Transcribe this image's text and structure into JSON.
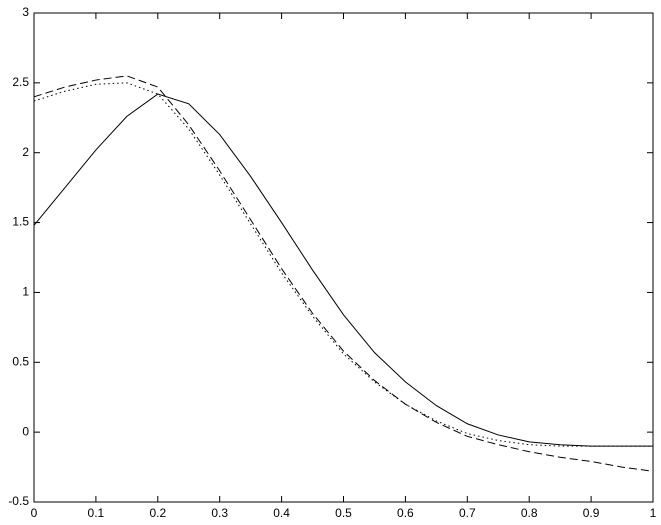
{
  "chart_data": {
    "type": "line",
    "x": [
      0,
      0.05,
      0.1,
      0.15,
      0.2,
      0.25,
      0.3,
      0.35,
      0.4,
      0.45,
      0.5,
      0.55,
      0.6,
      0.65,
      0.7,
      0.75,
      0.8,
      0.85,
      0.9,
      0.95,
      1
    ],
    "series": [
      {
        "color": "#000000",
        "dash": "solid",
        "values": [
          1.48,
          1.75,
          2.02,
          2.26,
          2.42,
          2.35,
          2.13,
          1.83,
          1.5,
          1.16,
          0.84,
          0.57,
          0.36,
          0.19,
          0.06,
          -0.02,
          -0.07,
          -0.09,
          -0.1,
          -0.1,
          -0.1
        ]
      },
      {
        "color": "#000000",
        "dash": "dashed",
        "values": [
          2.4,
          2.47,
          2.52,
          2.55,
          2.47,
          2.2,
          1.87,
          1.52,
          1.17,
          0.85,
          0.58,
          0.37,
          0.2,
          0.07,
          -0.03,
          -0.09,
          -0.14,
          -0.18,
          -0.21,
          -0.25,
          -0.28
        ]
      },
      {
        "color": "#000000",
        "dash": "dotted",
        "values": [
          2.37,
          2.44,
          2.49,
          2.5,
          2.42,
          2.17,
          1.84,
          1.49,
          1.14,
          0.83,
          0.56,
          0.36,
          0.2,
          0.08,
          -0.01,
          -0.06,
          -0.09,
          -0.1,
          -0.1,
          -0.1,
          -0.1
        ]
      }
    ],
    "xlim": [
      0,
      1
    ],
    "xticks": [
      0,
      0.1,
      0.2,
      0.3,
      0.4,
      0.5,
      0.6,
      0.7,
      0.8,
      0.9,
      1
    ],
    "ylim": [
      -0.5,
      3
    ],
    "yticks": [
      -0.5,
      0,
      0.5,
      1,
      1.5,
      2,
      2.5,
      3
    ],
    "grid": false
  }
}
